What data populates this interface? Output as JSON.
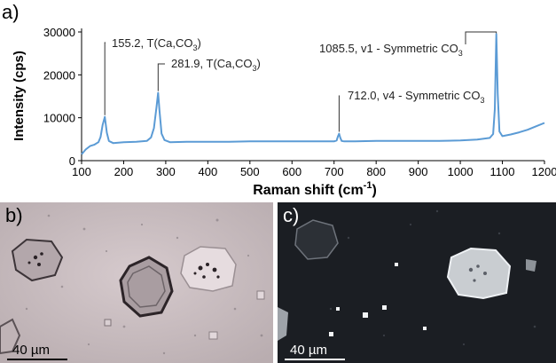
{
  "chart_data": {
    "type": "line",
    "panel_label": "a)",
    "xlabel": "Raman shift (cm",
    "xlabel_sup": "-1",
    "xlabel_end": ")",
    "ylabel": "Intensity (cps)",
    "xlim": [
      100,
      1200
    ],
    "ylim": [
      0,
      30000
    ],
    "x_ticks": [
      100,
      200,
      300,
      400,
      500,
      600,
      700,
      800,
      900,
      1000,
      1100,
      1200
    ],
    "y_ticks": [
      0,
      10000,
      20000,
      30000
    ],
    "series": [
      {
        "color": "#5b9bd5",
        "x": [
          100,
          110,
          120,
          130,
          140,
          145,
          150,
          155.2,
          160,
          165,
          175,
          200,
          230,
          255,
          265,
          272,
          278,
          281.9,
          285,
          290,
          297,
          310,
          350,
          400,
          450,
          500,
          550,
          600,
          650,
          700,
          706,
          709,
          712,
          715,
          718,
          724,
          750,
          800,
          850,
          900,
          950,
          1000,
          1040,
          1070,
          1078,
          1082,
          1085.5,
          1089,
          1093,
          1100,
          1120,
          1140,
          1160,
          1180,
          1200
        ],
        "y": [
          1500,
          2600,
          3400,
          3700,
          4300,
          5500,
          8300,
          10200,
          6500,
          4600,
          4100,
          4300,
          4400,
          4600,
          5400,
          7600,
          12500,
          15800,
          11800,
          6300,
          4800,
          4300,
          4400,
          4400,
          4400,
          4500,
          4500,
          4500,
          4500,
          4500,
          4700,
          5600,
          6300,
          5300,
          4600,
          4500,
          4500,
          4600,
          4600,
          4600,
          4600,
          4700,
          4900,
          5300,
          6200,
          12000,
          29500,
          15500,
          6800,
          5700,
          6100,
          6600,
          7200,
          8000,
          8800
        ]
      }
    ],
    "annotations": [
      {
        "label": "155.2, T(Ca,CO",
        "sub": "3",
        "end": ")",
        "x": 155.2,
        "y": 10200
      },
      {
        "label": "281.9, T(Ca,CO",
        "sub": "3",
        "end": ")",
        "x": 281.9,
        "y": 15800
      },
      {
        "label": "712.0, v4 - Symmetric CO",
        "sub": "3",
        "end": "",
        "x": 712.0,
        "y": 6300
      },
      {
        "label": "1085.5, v1 - Symmetric CO",
        "sub": "3",
        "end": "",
        "x": 1085.5,
        "y": 29500
      }
    ]
  },
  "micrographs": [
    {
      "label": "b)",
      "scale_text": "40 µm",
      "illumination": "brightfield"
    },
    {
      "label": "c)",
      "scale_text": "40 µm",
      "illumination": "darkfield"
    }
  ]
}
